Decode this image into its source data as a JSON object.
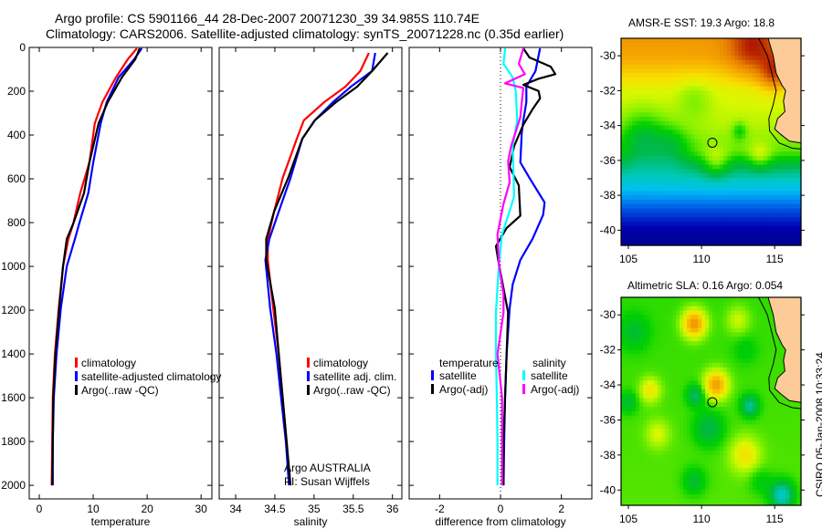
{
  "title": {
    "line1": "Argo profile: CS 5901166_44 28-Dec-2007 20071230_39 34.985S 110.74E",
    "line2": "Climatology: CARS2006. Satellite-adjusted climatology: synTS_20071228.nc (0.35d earlier)"
  },
  "side_stamp": "CSIRO 05-Jan-2008 10:33:24",
  "colors": {
    "climatology": "#ff0000",
    "satellite": "#0000ff",
    "argo": "#000000",
    "sal_satellite": "#00ffff",
    "sal_argo": "#ff00ff",
    "land": "#fccb98"
  },
  "chart_data": [
    {
      "type": "line",
      "id": "temperature",
      "xlabel": "temperature",
      "ylabel": "",
      "xlim": [
        -1.86,
        32.0
      ],
      "ylim": [
        0,
        2062
      ],
      "xticks": [
        0,
        10,
        20,
        30
      ],
      "yticks": [
        0,
        200,
        400,
        600,
        800,
        1000,
        1200,
        1400,
        1600,
        1800,
        2000
      ],
      "legend": [
        "climatology",
        "satellite-adjusted climatology",
        "Argo(..raw -QC)"
      ],
      "series": [
        {
          "name": "climatology",
          "color": "#ff0000",
          "depth": [
            4,
            54,
            137,
            250,
            346,
            525,
            665,
            805,
            875,
            1000,
            1192,
            1400,
            1600,
            1800,
            2000
          ],
          "values": [
            18.1,
            16.4,
            14.2,
            11.7,
            10.3,
            9.3,
            7.6,
            6.3,
            5.4,
            4.4,
            3.6,
            2.9,
            2.5,
            2.4,
            2.3
          ]
        },
        {
          "name": "satellite-adjusted climatology",
          "color": "#0000ff",
          "depth": [
            4,
            54,
            137,
            250,
            346,
            525,
            665,
            805,
            875,
            1000,
            1192,
            1400,
            1600,
            1800,
            2000
          ],
          "values": [
            19.0,
            17.6,
            14.7,
            12.5,
            11.4,
            10.0,
            9.1,
            7.4,
            6.6,
            5.1,
            4.0,
            3.2,
            2.7,
            2.5,
            2.5
          ]
        },
        {
          "name": "Argo(..raw -QC)",
          "color": "#000000",
          "depth": [
            4,
            54,
            137,
            250,
            346,
            525,
            665,
            805,
            875,
            1000,
            1192,
            1400,
            1600,
            1800,
            2000
          ],
          "values": [
            18.6,
            17.8,
            15.3,
            12.7,
            11.0,
            9.3,
            8.3,
            6.3,
            5.1,
            4.4,
            3.7,
            3.0,
            2.6,
            2.5,
            2.4
          ]
        }
      ]
    },
    {
      "type": "line",
      "id": "salinity",
      "xlabel": "salinity",
      "xlim": [
        33.79,
        36.12
      ],
      "ylim": [
        0,
        2062
      ],
      "xticks": [
        34,
        34.5,
        35,
        35.5,
        36
      ],
      "legend": [
        "climatology",
        "satellite adj. clim.",
        "Argo(..raw -QC)"
      ],
      "annotations": [
        "Argo AUSTRALIA",
        "PI: Susan Wijffels"
      ],
      "series": [
        {
          "name": "climatology",
          "color": "#ff0000",
          "depth": [
            25,
            108,
            179,
            250,
            333,
            417,
            596,
            750,
            875,
            971,
            1192,
            1400,
            1600,
            1800,
            2000
          ],
          "values": [
            35.7,
            35.59,
            35.4,
            35.13,
            34.87,
            34.78,
            34.6,
            34.49,
            34.41,
            34.41,
            34.48,
            34.55,
            34.6,
            34.65,
            34.69
          ]
        },
        {
          "name": "satellite adj. clim.",
          "color": "#0000ff",
          "depth": [
            25,
            108,
            179,
            250,
            333,
            417,
            596,
            750,
            875,
            971,
            1192,
            1400,
            1600,
            1800,
            2000
          ],
          "values": [
            35.78,
            35.74,
            35.47,
            35.24,
            35.01,
            34.85,
            34.7,
            34.55,
            34.43,
            34.38,
            34.44,
            34.52,
            34.58,
            34.64,
            34.68
          ]
        },
        {
          "name": "Argo(..raw -QC)",
          "color": "#000000",
          "depth": [
            25,
            108,
            179,
            250,
            333,
            417,
            596,
            750,
            875,
            971,
            1192,
            1400,
            1600,
            1800,
            2000
          ],
          "values": [
            35.94,
            35.74,
            35.55,
            35.28,
            35.01,
            34.85,
            34.67,
            34.49,
            34.39,
            34.39,
            34.5,
            34.55,
            34.6,
            34.65,
            34.7
          ]
        }
      ]
    },
    {
      "type": "line",
      "id": "difference",
      "xlabel": "difference from climatology",
      "xlim": [
        -3.0,
        3.0
      ],
      "ylim": [
        0,
        2062
      ],
      "xticks": [
        -2,
        0,
        2
      ],
      "legend_groups": [
        {
          "heading": "temperature",
          "items": [
            "satellite",
            "Argo(-adj)"
          ]
        },
        {
          "heading": "salinity",
          "items": [
            "satellite",
            "Argo(-adj)"
          ]
        }
      ],
      "series": [
        {
          "name": "temperature satellite",
          "color": "#0000ff",
          "depth": [
            4,
            108,
            179,
            250,
            333,
            389,
            525,
            596,
            708,
            764,
            875,
            971,
            1083,
            1192,
            1400,
            1600,
            1800,
            2000
          ],
          "values": [
            1.3,
            1.15,
            0.85,
            0.85,
            0.75,
            0.7,
            0.65,
            0.95,
            1.45,
            1.4,
            1.05,
            0.65,
            0.4,
            0.3,
            0.2,
            0.15,
            0.12,
            0.1
          ]
        },
        {
          "name": "temperature Argo(-adj)",
          "color": "#000000",
          "depth": [
            4,
            46,
            88,
            122,
            143,
            171,
            199,
            233,
            283,
            353,
            450,
            546,
            630,
            769,
            825,
            908,
            992,
            1100,
            1210,
            1400,
            1600,
            1800,
            2000
          ],
          "values": [
            0.75,
            0.95,
            1.65,
            1.8,
            1.25,
            0.75,
            1.25,
            1.3,
            1.05,
            0.75,
            0.45,
            0.3,
            0.6,
            0.65,
            0.2,
            -0.15,
            -0.05,
            0.1,
            0.25,
            0.2,
            0.15,
            0.1,
            0.1
          ]
        },
        {
          "name": "salinity satellite",
          "color": "#00ffff",
          "depth": [
            4,
            75,
            137,
            199,
            333,
            450,
            680,
            769,
            853,
            992,
            1210,
            1400,
            1600,
            1800,
            2000
          ],
          "values": [
            0.15,
            0.1,
            0.4,
            0.5,
            0.55,
            0.4,
            0.45,
            0.25,
            0.05,
            -0.05,
            -0.15,
            -0.15,
            -0.12,
            -0.1,
            -0.1
          ]
        },
        {
          "name": "salinity Argo(-adj)",
          "color": "#ff00ff",
          "depth": [
            4,
            75,
            122,
            164,
            185,
            250,
            319,
            450,
            519,
            616,
            714,
            853,
            992,
            1130,
            1210,
            1400,
            1600,
            1800,
            2000
          ],
          "values": [
            0.75,
            0.6,
            0.8,
            0.15,
            0.75,
            0.7,
            0.65,
            0.35,
            0.25,
            0.3,
            0.1,
            -0.1,
            -0.05,
            0.1,
            0.1,
            -0.1,
            0.05,
            0.05,
            0.05
          ]
        }
      ]
    },
    {
      "type": "heatmap",
      "id": "sst-map",
      "title": "AMSR-E SST: 19.3 Argo: 18.8",
      "xlim": [
        104.5,
        116.8
      ],
      "ylim": [
        -40.87,
        -29.0
      ],
      "xticks": [
        105,
        110,
        115
      ],
      "yticks": [
        -30,
        -32,
        -34,
        -36,
        -38,
        -40
      ],
      "float_position": [
        110.74,
        -34.985
      ],
      "field": {
        "lat_profile": [
          [
            -28,
            0.84
          ],
          [
            -30,
            0.8
          ],
          [
            -31,
            0.74
          ],
          [
            -32,
            0.68
          ],
          [
            -34,
            0.65
          ],
          [
            -35.5,
            0.6
          ],
          [
            -36.3,
            0.5
          ],
          [
            -37.2,
            0.4
          ],
          [
            -38.2,
            0.3
          ],
          [
            -39.2,
            0.18
          ],
          [
            -40,
            0.08
          ],
          [
            -41,
            0.03
          ]
        ],
        "blobs": [
          [
            106,
            -34.8,
            -0.12,
            1.6
          ],
          [
            108,
            -35.2,
            -0.08,
            1.2
          ],
          [
            113.5,
            -29.5,
            0.16,
            1.6
          ],
          [
            115,
            -31,
            0.18,
            1.0
          ],
          [
            112.6,
            -34.3,
            -0.08,
            0.5
          ],
          [
            111,
            -36.2,
            0.1,
            0.9
          ],
          [
            114,
            -35.8,
            0.08,
            0.8
          ],
          [
            109.5,
            -32.5,
            -0.05,
            1.2
          ]
        ]
      }
    },
    {
      "type": "heatmap",
      "id": "sla-map",
      "title": "Altimetric SLA: 0.16 Argo: 0.054",
      "xlim": [
        104.5,
        116.8
      ],
      "ylim": [
        -40.87,
        -29.0
      ],
      "xticks": [
        105,
        110,
        115
      ],
      "yticks": [
        -30,
        -32,
        -34,
        -36,
        -38,
        -40
      ],
      "float_position": [
        110.74,
        -34.985
      ],
      "field": {
        "lat_profile": [
          [
            -28,
            0.58
          ],
          [
            -41,
            0.6
          ]
        ],
        "blobs": [
          [
            109.5,
            -30.5,
            0.24,
            0.8
          ],
          [
            111,
            -34,
            0.22,
            0.8
          ],
          [
            106.5,
            -34.3,
            0.12,
            0.7
          ],
          [
            107,
            -36.8,
            0.08,
            0.8
          ],
          [
            113,
            -38,
            0.12,
            1.0
          ],
          [
            112.5,
            -30.3,
            0.08,
            0.8
          ],
          [
            115.5,
            -40.3,
            -0.2,
            0.8
          ],
          [
            113.3,
            -35.2,
            -0.15,
            0.6
          ],
          [
            110.5,
            -36.5,
            -0.1,
            1.0
          ],
          [
            109.6,
            -34.6,
            -0.12,
            0.6
          ],
          [
            109.5,
            -39.5,
            -0.08,
            0.8
          ],
          [
            105.4,
            -31,
            -0.07,
            1.0
          ],
          [
            105,
            -35,
            -0.08,
            0.6
          ],
          [
            114,
            -39.5,
            -0.05,
            0.8
          ],
          [
            113,
            -32,
            -0.04,
            0.8
          ]
        ]
      }
    }
  ],
  "coastline": [
    [
      114.55,
      -29.0
    ],
    [
      114.9,
      -30
    ],
    [
      115.1,
      -31
    ],
    [
      115.5,
      -31.7
    ],
    [
      115.75,
      -32
    ],
    [
      115.6,
      -32.6
    ],
    [
      115.7,
      -33.2
    ],
    [
      115.2,
      -33.6
    ],
    [
      115.0,
      -34.2
    ],
    [
      115.4,
      -34.5
    ],
    [
      116.0,
      -34.9
    ],
    [
      116.8,
      -35.0
    ]
  ],
  "shelf_contour": [
    [
      113.9,
      -29.0
    ],
    [
      114.5,
      -30
    ],
    [
      114.8,
      -31
    ],
    [
      115.1,
      -32
    ],
    [
      114.9,
      -32.8
    ],
    [
      114.6,
      -33.6
    ],
    [
      114.65,
      -34.3
    ],
    [
      115.3,
      -35.0
    ],
    [
      116.2,
      -35.3
    ],
    [
      116.8,
      -35.35
    ]
  ]
}
